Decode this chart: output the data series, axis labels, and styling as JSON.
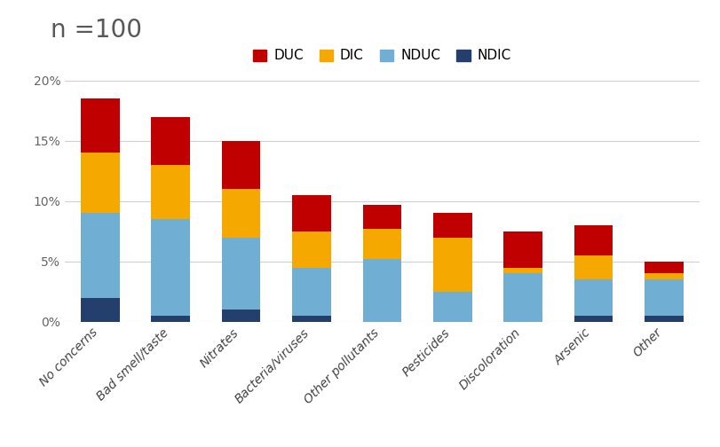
{
  "categories": [
    "No concerns",
    "Bad smell/taste",
    "Nitrates",
    "Bacteria/viruses",
    "Other pollutants",
    "Pesticides",
    "Discoloration",
    "Arsenic",
    "Other"
  ],
  "series": {
    "NDIC": [
      2.0,
      0.5,
      1.0,
      0.5,
      0.0,
      0.0,
      0.0,
      0.5,
      0.5
    ],
    "NDUC": [
      7.0,
      8.0,
      6.0,
      4.0,
      5.2,
      2.5,
      4.0,
      3.0,
      3.0
    ],
    "DIC": [
      5.0,
      4.5,
      4.0,
      3.0,
      2.5,
      4.5,
      0.5,
      2.0,
      0.5
    ],
    "DUC": [
      4.5,
      4.0,
      4.0,
      3.0,
      2.0,
      2.0,
      3.0,
      2.5,
      1.0
    ]
  },
  "colors": {
    "NDIC": "#243f6b",
    "NDUC": "#70aed4",
    "DIC": "#f5a800",
    "DUC": "#c00000"
  },
  "legend_order": [
    "DUC",
    "DIC",
    "NDUC",
    "NDIC"
  ],
  "ylim": [
    0,
    20
  ],
  "yticks": [
    0,
    5,
    10,
    15,
    20
  ],
  "ytick_labels": [
    "0%",
    "5%",
    "10%",
    "15%",
    "20%"
  ],
  "annotation": "n =100",
  "bar_width": 0.55,
  "background_color": "#ffffff",
  "grid_color": "#d0d0d0",
  "title_fontsize": 20,
  "tick_fontsize": 10,
  "legend_fontsize": 11
}
